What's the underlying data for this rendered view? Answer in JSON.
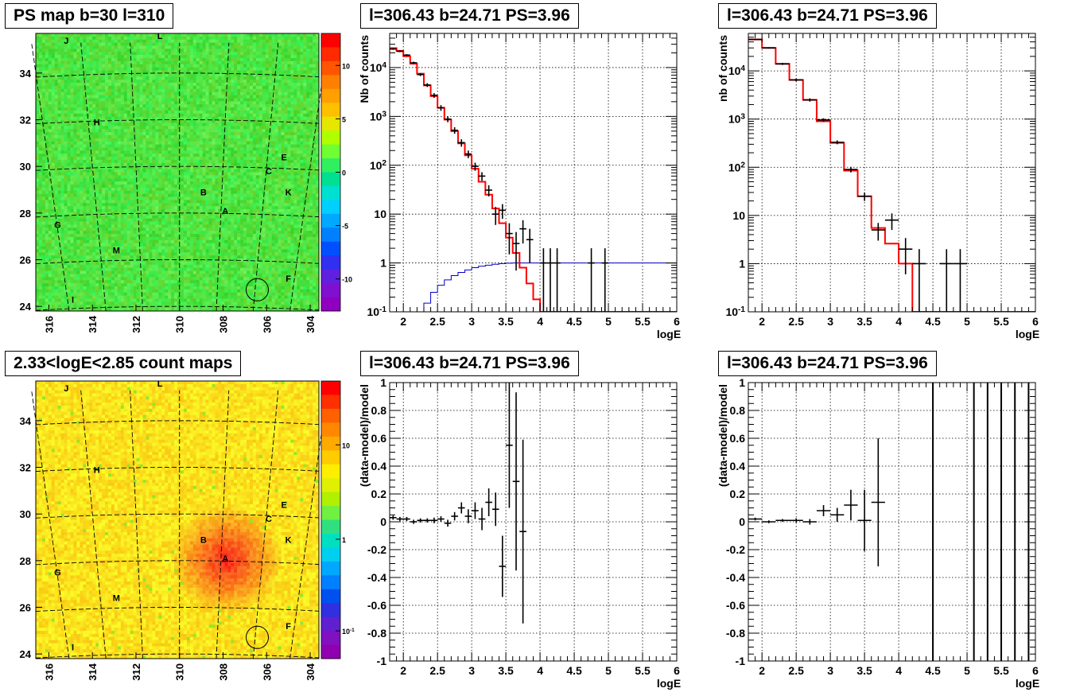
{
  "titles": {
    "ps_map": "PS map b=30 l=310",
    "spectrum": "l=306.43 b=24.71 PS=3.96",
    "spectrum_right": "l=306.43 b=24.71 PS=3.96",
    "count_map": "2.33<logE<2.85 count maps",
    "residual": "l=306.43 b=24.71 PS=3.96",
    "residual_right": "l=306.43 b=24.71 PS=3.96"
  },
  "colors": {
    "model_line": "#ff0000",
    "efficiency_line": "#0000cc",
    "data_marker": "#000000",
    "grid": "#000000"
  },
  "chart_data": [
    {
      "type": "heatmap",
      "name": "ps-map",
      "xlabel": "",
      "ylabel": "",
      "xlim": [
        316.6,
        303.6
      ],
      "ylim": [
        23.8,
        35.7
      ],
      "x_ticks": [
        "316",
        "314",
        "312",
        "310",
        "308",
        "306",
        "304"
      ],
      "y_ticks": [
        "24",
        "26",
        "28",
        "30",
        "32",
        "34"
      ],
      "colorbar": {
        "min": -13,
        "max": 13,
        "ticks": [
          "10",
          "5",
          "0",
          "-5",
          "-10"
        ]
      },
      "sources": [
        {
          "label": "J",
          "l": 315.2,
          "b": 35.4
        },
        {
          "label": "L",
          "l": 310.9,
          "b": 35.6
        },
        {
          "label": "H",
          "l": 313.8,
          "b": 31.9
        },
        {
          "label": "E",
          "l": 305.2,
          "b": 30.4
        },
        {
          "label": "C",
          "l": 305.9,
          "b": 29.8
        },
        {
          "label": "B",
          "l": 308.9,
          "b": 28.9
        },
        {
          "label": "K",
          "l": 305.0,
          "b": 28.9
        },
        {
          "label": "A",
          "l": 307.9,
          "b": 28.1
        },
        {
          "label": "G",
          "l": 315.6,
          "b": 27.5
        },
        {
          "label": "M",
          "l": 312.9,
          "b": 26.4
        },
        {
          "label": "F",
          "l": 305.0,
          "b": 25.2
        },
        {
          "label": "I",
          "l": 314.9,
          "b": 24.3
        }
      ],
      "circle": {
        "l": 306.43,
        "b": 24.71
      }
    },
    {
      "type": "line",
      "name": "spectrum-left",
      "xlabel": "logE",
      "ylabel": "Nb of counts",
      "xlim": [
        1.8,
        6
      ],
      "ylim": [
        0.1,
        50000
      ],
      "log_y": true,
      "grid": true,
      "x_ticks": [
        "2",
        "2.5",
        "3",
        "3.5",
        "4",
        "4.5",
        "5",
        "5.5",
        "6"
      ],
      "y_ticks": [
        "10^-1",
        "1",
        "10",
        "10^2",
        "10^3",
        "10^4"
      ],
      "model": {
        "edges": [
          1.8,
          1.9,
          2.0,
          2.1,
          2.2,
          2.3,
          2.4,
          2.5,
          2.6,
          2.7,
          2.8,
          2.9,
          3.0,
          3.1,
          3.2,
          3.3,
          3.4,
          3.5,
          3.6,
          3.7,
          3.8,
          3.9,
          4.0,
          4.1,
          4.2,
          6.0
        ],
        "values": [
          25000,
          22000,
          17000,
          12000,
          7500,
          4300,
          2600,
          1500,
          860,
          500,
          280,
          160,
          85,
          46,
          25,
          13,
          6.5,
          3.3,
          1.6,
          0.8,
          0.38,
          0.18,
          0.1,
          0.1,
          0.1
        ]
      },
      "data": [
        {
          "x": 1.85,
          "y": 24000,
          "xe": 0.05,
          "ye": 900
        },
        {
          "x": 1.95,
          "y": 21500,
          "xe": 0.05,
          "ye": 850
        },
        {
          "x": 2.05,
          "y": 18000,
          "xe": 0.05,
          "ye": 800
        },
        {
          "x": 2.15,
          "y": 12500,
          "xe": 0.05,
          "ye": 700
        },
        {
          "x": 2.25,
          "y": 7200,
          "xe": 0.05,
          "ye": 500
        },
        {
          "x": 2.35,
          "y": 4400,
          "xe": 0.05,
          "ye": 400
        },
        {
          "x": 2.45,
          "y": 2700,
          "xe": 0.05,
          "ye": 300
        },
        {
          "x": 2.55,
          "y": 1500,
          "xe": 0.05,
          "ye": 200
        },
        {
          "x": 2.65,
          "y": 880,
          "xe": 0.05,
          "ye": 120
        },
        {
          "x": 2.75,
          "y": 520,
          "xe": 0.05,
          "ye": 80
        },
        {
          "x": 2.85,
          "y": 290,
          "xe": 0.05,
          "ye": 50
        },
        {
          "x": 2.95,
          "y": 170,
          "xe": 0.05,
          "ye": 30
        },
        {
          "x": 3.05,
          "y": 95,
          "xe": 0.05,
          "ye": 18
        },
        {
          "x": 3.15,
          "y": 60,
          "xe": 0.05,
          "ye": 12
        },
        {
          "x": 3.25,
          "y": 31,
          "xe": 0.05,
          "ye": 8
        },
        {
          "x": 3.35,
          "y": 10,
          "xe": 0.05,
          "ye": 4
        },
        {
          "x": 3.45,
          "y": 12,
          "xe": 0.05,
          "ye": 4
        },
        {
          "x": 3.55,
          "y": 4,
          "xe": 0.05,
          "ye": 2.5
        },
        {
          "x": 3.65,
          "y": 2.5,
          "xe": 0.05,
          "ye": 1.8
        },
        {
          "x": 3.75,
          "y": 5,
          "xe": 0.05,
          "ye": 2.5
        },
        {
          "x": 3.85,
          "y": 3,
          "xe": 0.05,
          "ye": 2
        },
        {
          "x": 4.05,
          "y": 1,
          "xe": 0.05,
          "ye": 1
        },
        {
          "x": 4.15,
          "y": 1,
          "xe": 0.05,
          "ye": 1
        },
        {
          "x": 4.25,
          "y": 1,
          "xe": 0.05,
          "ye": 1
        },
        {
          "x": 4.75,
          "y": 1,
          "xe": 0.05,
          "ye": 1
        },
        {
          "x": 4.95,
          "y": 1,
          "xe": 0.05,
          "ye": 1
        }
      ],
      "efficiency": {
        "edges": [
          1.8,
          2.3,
          2.4,
          2.5,
          2.6,
          2.7,
          2.8,
          2.9,
          3.0,
          3.1,
          3.2,
          3.3,
          3.4,
          3.5,
          3.6,
          3.7,
          3.8,
          3.9,
          4.0,
          6.0
        ],
        "values": [
          0.1,
          0.15,
          0.25,
          0.35,
          0.45,
          0.55,
          0.64,
          0.72,
          0.8,
          0.86,
          0.9,
          0.94,
          0.97,
          0.99,
          1,
          1,
          1,
          1,
          1
        ]
      }
    },
    {
      "type": "line",
      "name": "spectrum-right",
      "xlabel": "logE",
      "ylabel": "nb of counts",
      "xlim": [
        1.8,
        6
      ],
      "ylim": [
        0.1,
        60000
      ],
      "log_y": true,
      "grid": true,
      "x_ticks": [
        "2",
        "2.5",
        "3",
        "3.5",
        "4",
        "4.5",
        "5",
        "5.5",
        "6"
      ],
      "y_ticks": [
        "10^-1",
        "1",
        "10",
        "10^2",
        "10^3",
        "10^4"
      ],
      "model": {
        "edges": [
          1.8,
          2.0,
          2.2,
          2.4,
          2.6,
          2.8,
          3.0,
          3.2,
          3.4,
          3.6,
          3.8,
          4.0,
          4.2,
          6.0
        ],
        "values": [
          45000,
          30000,
          14000,
          6500,
          2500,
          900,
          320,
          85,
          25,
          5.5,
          2.6,
          1,
          0.1
        ]
      },
      "data": [
        {
          "x": 1.9,
          "y": 45000,
          "xe": 0.1,
          "ye": 1200
        },
        {
          "x": 2.1,
          "y": 30000,
          "xe": 0.1,
          "ye": 1000
        },
        {
          "x": 2.3,
          "y": 14000,
          "xe": 0.1,
          "ye": 700
        },
        {
          "x": 2.5,
          "y": 6500,
          "xe": 0.1,
          "ye": 400
        },
        {
          "x": 2.7,
          "y": 2500,
          "xe": 0.1,
          "ye": 200
        },
        {
          "x": 2.9,
          "y": 960,
          "xe": 0.1,
          "ye": 80
        },
        {
          "x": 3.1,
          "y": 330,
          "xe": 0.1,
          "ye": 30
        },
        {
          "x": 3.3,
          "y": 90,
          "xe": 0.1,
          "ye": 12
        },
        {
          "x": 3.5,
          "y": 25,
          "xe": 0.1,
          "ye": 5
        },
        {
          "x": 3.7,
          "y": 5,
          "xe": 0.1,
          "ye": 2
        },
        {
          "x": 3.9,
          "y": 8,
          "xe": 0.1,
          "ye": 3
        },
        {
          "x": 4.1,
          "y": 2,
          "xe": 0.1,
          "ye": 1.4
        },
        {
          "x": 4.3,
          "y": 1,
          "xe": 0.1,
          "ye": 1
        },
        {
          "x": 4.7,
          "y": 1,
          "xe": 0.1,
          "ye": 1
        },
        {
          "x": 4.9,
          "y": 1,
          "xe": 0.1,
          "ye": 1
        }
      ]
    },
    {
      "type": "heatmap",
      "name": "count-map",
      "xlabel": "",
      "ylabel": "",
      "xlim": [
        316.6,
        303.6
      ],
      "ylim": [
        23.8,
        35.7
      ],
      "x_ticks": [
        "316",
        "314",
        "312",
        "310",
        "308",
        "306",
        "304"
      ],
      "y_ticks": [
        "24",
        "26",
        "28",
        "30",
        "32",
        "34"
      ],
      "colorbar": {
        "log": true,
        "ticks": [
          "10",
          "1",
          "10^-1"
        ]
      },
      "sources": [
        {
          "label": "J",
          "l": 315.2,
          "b": 35.4
        },
        {
          "label": "L",
          "l": 310.9,
          "b": 35.6
        },
        {
          "label": "H",
          "l": 313.8,
          "b": 31.9
        },
        {
          "label": "E",
          "l": 305.2,
          "b": 30.4
        },
        {
          "label": "C",
          "l": 305.9,
          "b": 29.8
        },
        {
          "label": "B",
          "l": 308.9,
          "b": 28.9
        },
        {
          "label": "K",
          "l": 305.0,
          "b": 28.9
        },
        {
          "label": "A",
          "l": 307.9,
          "b": 28.1
        },
        {
          "label": "G",
          "l": 315.6,
          "b": 27.5
        },
        {
          "label": "M",
          "l": 312.9,
          "b": 26.4
        },
        {
          "label": "F",
          "l": 305.0,
          "b": 25.2
        },
        {
          "label": "I",
          "l": 314.9,
          "b": 24.3
        }
      ],
      "circle": {
        "l": 306.43,
        "b": 24.71
      }
    },
    {
      "type": "scatter",
      "name": "residual-left",
      "xlabel": "logE",
      "ylabel": "(data-model)/model",
      "xlim": [
        1.8,
        6
      ],
      "ylim": [
        -1,
        1
      ],
      "grid": true,
      "x_ticks": [
        "2",
        "2.5",
        "3",
        "3.5",
        "4",
        "4.5",
        "5",
        "5.5",
        "6"
      ],
      "y_ticks": [
        "-1",
        "-0.8",
        "-0.6",
        "-0.4",
        "-0.2",
        "0",
        "0.2",
        "0.4",
        "0.6",
        "0.8",
        "1"
      ],
      "data": [
        {
          "x": 1.85,
          "y": 0.03,
          "xe": 0.05,
          "ye": 0.015
        },
        {
          "x": 1.95,
          "y": 0.02,
          "xe": 0.05,
          "ye": 0.015
        },
        {
          "x": 2.05,
          "y": 0.02,
          "xe": 0.05,
          "ye": 0.015
        },
        {
          "x": 2.15,
          "y": 0.0,
          "xe": 0.05,
          "ye": 0.015
        },
        {
          "x": 2.25,
          "y": 0.01,
          "xe": 0.05,
          "ye": 0.015
        },
        {
          "x": 2.35,
          "y": 0.01,
          "xe": 0.05,
          "ye": 0.015
        },
        {
          "x": 2.45,
          "y": 0.01,
          "xe": 0.05,
          "ye": 0.02
        },
        {
          "x": 2.55,
          "y": 0.02,
          "xe": 0.05,
          "ye": 0.02
        },
        {
          "x": 2.65,
          "y": -0.01,
          "xe": 0.05,
          "ye": 0.025
        },
        {
          "x": 2.75,
          "y": 0.04,
          "xe": 0.05,
          "ye": 0.03
        },
        {
          "x": 2.85,
          "y": 0.1,
          "xe": 0.05,
          "ye": 0.04
        },
        {
          "x": 2.95,
          "y": 0.04,
          "xe": 0.05,
          "ye": 0.05
        },
        {
          "x": 3.05,
          "y": 0.08,
          "xe": 0.05,
          "ye": 0.06
        },
        {
          "x": 3.15,
          "y": 0.02,
          "xe": 0.05,
          "ye": 0.08
        },
        {
          "x": 3.25,
          "y": 0.14,
          "xe": 0.05,
          "ye": 0.1
        },
        {
          "x": 3.35,
          "y": 0.09,
          "xe": 0.05,
          "ye": 0.12
        },
        {
          "x": 3.45,
          "y": -0.32,
          "xe": 0.05,
          "ye": 0.22
        },
        {
          "x": 3.55,
          "y": 0.55,
          "xe": 0.05,
          "ye": 0.45
        },
        {
          "x": 3.65,
          "y": 0.29,
          "xe": 0.05,
          "ye": 0.64
        },
        {
          "x": 3.75,
          "y": -0.07,
          "xe": 0.05,
          "ye": 0.66
        }
      ]
    },
    {
      "type": "scatter",
      "name": "residual-right",
      "xlabel": "logE",
      "ylabel": "(data-model)/model",
      "xlim": [
        1.8,
        6
      ],
      "ylim": [
        -1,
        1
      ],
      "grid": true,
      "x_ticks": [
        "2",
        "2.5",
        "3",
        "3.5",
        "4",
        "4.5",
        "5",
        "5.5",
        "6"
      ],
      "y_ticks": [
        "-1",
        "-0.8",
        "-0.6",
        "-0.4",
        "-0.2",
        "0",
        "0.2",
        "0.4",
        "0.6",
        "0.8",
        "1"
      ],
      "data": [
        {
          "x": 1.9,
          "y": 0.02,
          "xe": 0.1,
          "ye": 0.01
        },
        {
          "x": 2.1,
          "y": 0.0,
          "xe": 0.1,
          "ye": 0.01
        },
        {
          "x": 2.3,
          "y": 0.01,
          "xe": 0.1,
          "ye": 0.01
        },
        {
          "x": 2.5,
          "y": 0.01,
          "xe": 0.1,
          "ye": 0.015
        },
        {
          "x": 2.7,
          "y": 0.0,
          "xe": 0.1,
          "ye": 0.02
        },
        {
          "x": 2.9,
          "y": 0.08,
          "xe": 0.1,
          "ye": 0.04
        },
        {
          "x": 3.1,
          "y": 0.05,
          "xe": 0.1,
          "ye": 0.05
        },
        {
          "x": 3.3,
          "y": 0.12,
          "xe": 0.1,
          "ye": 0.11
        },
        {
          "x": 3.5,
          "y": 0.01,
          "xe": 0.1,
          "ye": 0.22
        },
        {
          "x": 3.7,
          "y": 0.14,
          "xe": 0.1,
          "ye": 0.46
        }
      ],
      "full_range_bars_x": [
        4.5,
        5.1,
        5.3,
        5.5,
        5.7,
        5.9
      ]
    }
  ]
}
